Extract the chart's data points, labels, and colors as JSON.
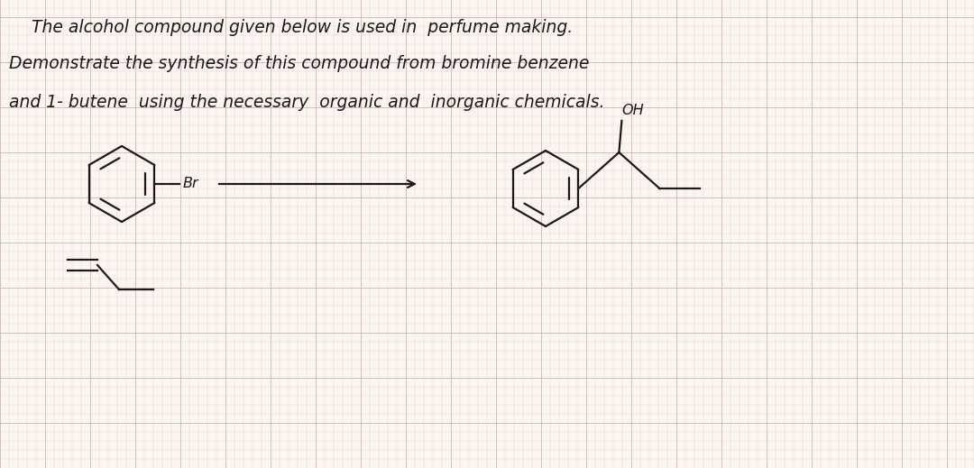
{
  "bg_color": "#faf5f0",
  "grid_color": "#d4aaaa",
  "grid_color_minor": "#e8d5d5",
  "line_color": "#1a1a1a",
  "text_color": "#1a1a1a",
  "line1": "The alcohol compound given below is used in  perfume making.",
  "line2": "Demonstrate the synthesis of this compound from bromine benzene",
  "line3": "and 1- butene  using the necessary  organic and  inorganic chemicals.",
  "br_label": "Br",
  "oh_label": "OH",
  "figsize": [
    10.8,
    5.19
  ],
  "dpi": 100,
  "text_fs": 13.5,
  "label_fs": 11.5
}
